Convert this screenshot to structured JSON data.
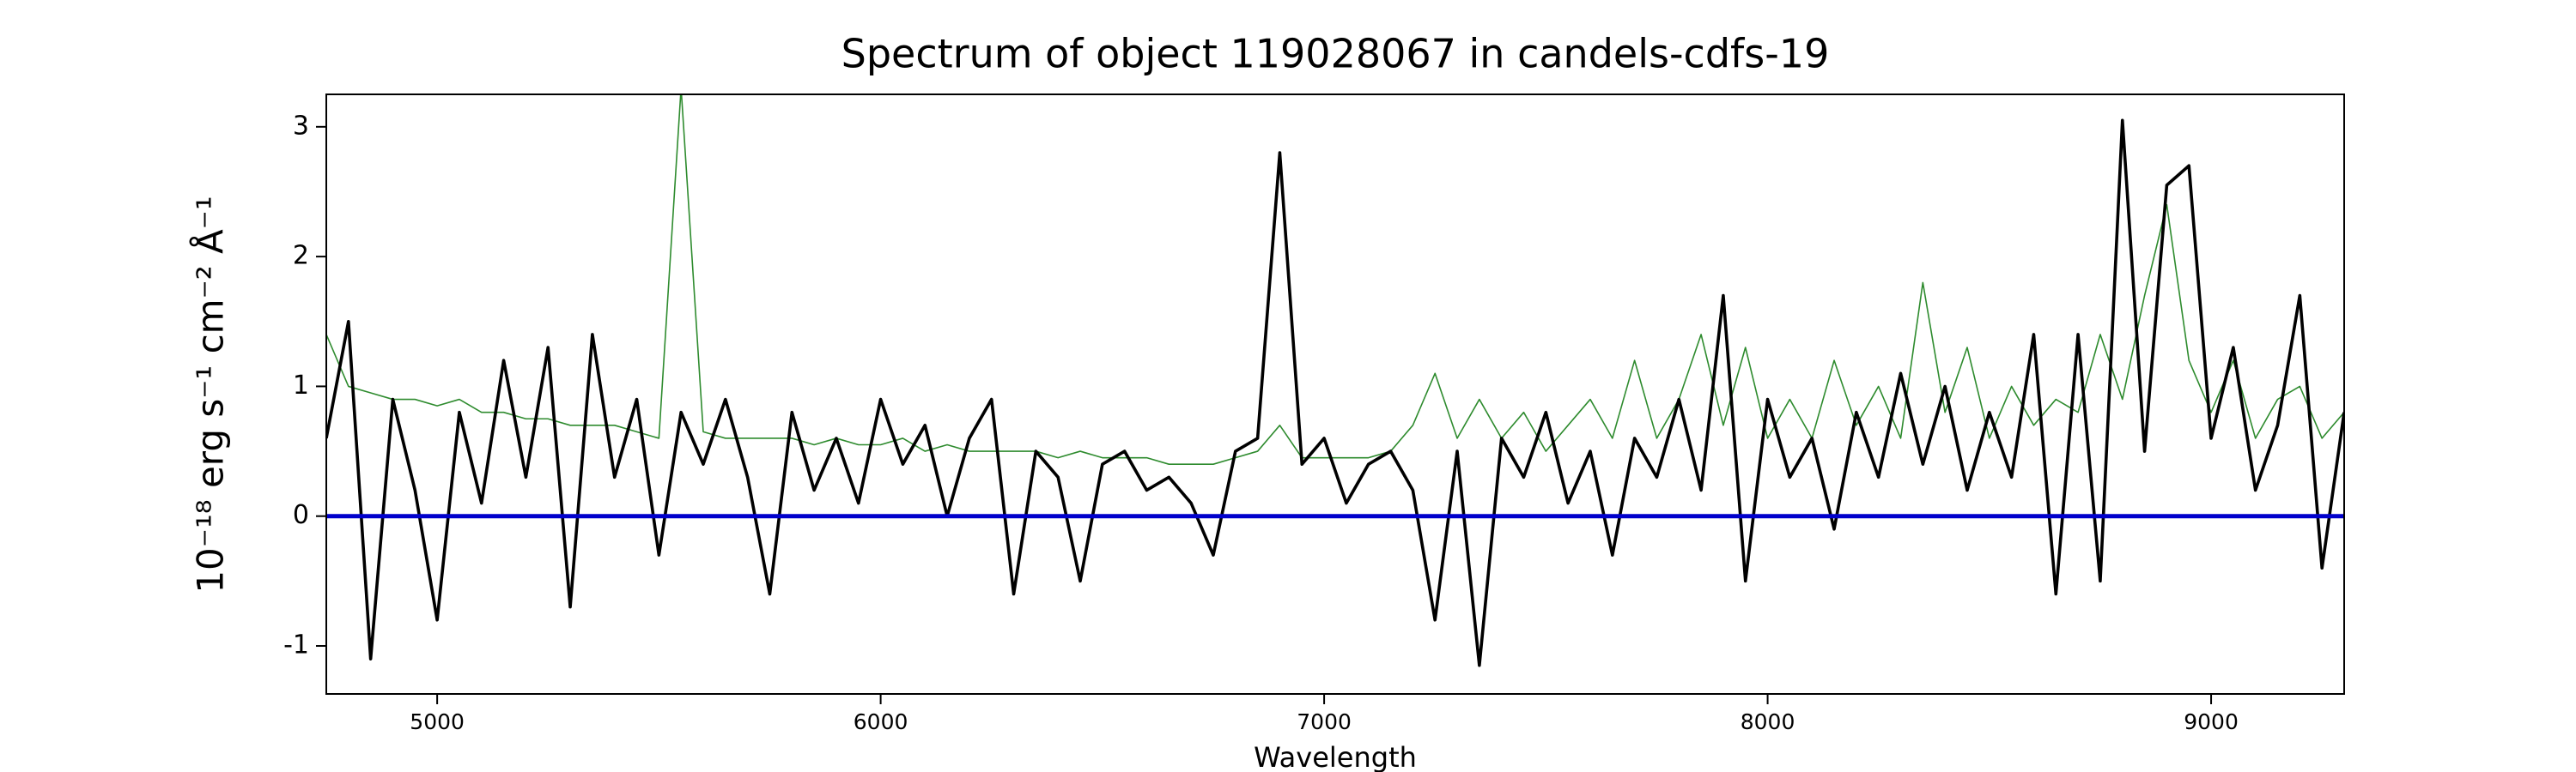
{
  "chart_data": {
    "type": "line",
    "title": "Spectrum of object 119028067 in candels-cdfs-19",
    "x_label": "Wavelength",
    "y_label": "10⁻¹⁸ erg s⁻¹ cm⁻² Å⁻¹",
    "x": [
      4750,
      4800,
      4850,
      4900,
      4950,
      5000,
      5050,
      5100,
      5150,
      5200,
      5250,
      5300,
      5350,
      5400,
      5450,
      5500,
      5550,
      5600,
      5650,
      5700,
      5750,
      5800,
      5850,
      5900,
      5950,
      6000,
      6050,
      6100,
      6150,
      6200,
      6250,
      6300,
      6350,
      6400,
      6450,
      6500,
      6550,
      6600,
      6650,
      6700,
      6750,
      6800,
      6850,
      6900,
      6950,
      7000,
      7050,
      7100,
      7150,
      7200,
      7250,
      7300,
      7350,
      7400,
      7450,
      7500,
      7550,
      7600,
      7650,
      7700,
      7750,
      7800,
      7850,
      7900,
      7950,
      8000,
      8050,
      8100,
      8150,
      8200,
      8250,
      8300,
      8350,
      8400,
      8450,
      8500,
      8550,
      8600,
      8650,
      8700,
      8750,
      8800,
      8850,
      8900,
      8950,
      9000,
      9050,
      9100,
      9150,
      9200,
      9250,
      9300
    ],
    "series": [
      {
        "color": "#2e8b2e",
        "width": 1.6,
        "values": [
          1.4,
          1.0,
          0.95,
          0.9,
          0.9,
          0.85,
          0.9,
          0.8,
          0.8,
          0.75,
          0.75,
          0.7,
          0.7,
          0.7,
          0.65,
          0.6,
          3.3,
          0.65,
          0.6,
          0.6,
          0.6,
          0.6,
          0.55,
          0.6,
          0.55,
          0.55,
          0.6,
          0.5,
          0.55,
          0.5,
          0.5,
          0.5,
          0.5,
          0.45,
          0.5,
          0.45,
          0.45,
          0.45,
          0.4,
          0.4,
          0.4,
          0.45,
          0.5,
          0.7,
          0.45,
          0.45,
          0.45,
          0.45,
          0.5,
          0.7,
          1.1,
          0.6,
          0.9,
          0.6,
          0.8,
          0.5,
          0.7,
          0.9,
          0.6,
          1.2,
          0.6,
          0.9,
          1.4,
          0.7,
          1.3,
          0.6,
          0.9,
          0.6,
          1.2,
          0.7,
          1.0,
          0.6,
          1.8,
          0.8,
          1.3,
          0.6,
          1.0,
          0.7,
          0.9,
          0.8,
          1.4,
          0.9,
          1.7,
          2.4,
          1.2,
          0.8,
          1.2,
          0.6,
          0.9,
          1.0,
          0.6,
          0.8
        ]
      },
      {
        "color": "#000000",
        "width": 3.6,
        "values": [
          0.6,
          1.5,
          -1.1,
          0.9,
          0.2,
          -0.8,
          0.8,
          0.1,
          1.2,
          0.3,
          1.3,
          -0.7,
          1.4,
          0.3,
          0.9,
          -0.3,
          0.8,
          0.4,
          0.9,
          0.3,
          -0.6,
          0.8,
          0.2,
          0.6,
          0.1,
          0.9,
          0.4,
          0.7,
          0.0,
          0.6,
          0.9,
          -0.6,
          0.5,
          0.3,
          -0.5,
          0.4,
          0.5,
          0.2,
          0.3,
          0.1,
          -0.3,
          0.5,
          0.6,
          2.8,
          0.4,
          0.6,
          0.1,
          0.4,
          0.5,
          0.2,
          -0.8,
          0.5,
          -1.15,
          0.6,
          0.3,
          0.8,
          0.1,
          0.5,
          -0.3,
          0.6,
          0.3,
          0.9,
          0.2,
          1.7,
          -0.5,
          0.9,
          0.3,
          0.6,
          -0.1,
          0.8,
          0.3,
          1.1,
          0.4,
          1.0,
          0.2,
          0.8,
          0.3,
          1.4,
          -0.6,
          1.4,
          -0.5,
          3.05,
          0.5,
          2.55,
          2.7,
          0.6,
          1.3,
          0.2,
          0.7,
          1.7,
          -0.4,
          0.8
        ]
      }
    ],
    "reference_line": {
      "y": 0,
      "color": "#0000cc"
    },
    "xlim": [
      4750,
      9300
    ],
    "ylim": [
      -1.37,
      3.25
    ],
    "xticks": [
      5000,
      6000,
      7000,
      8000,
      9000
    ],
    "yticks": [
      -1,
      0,
      1,
      2,
      3
    ],
    "grid": false
  }
}
